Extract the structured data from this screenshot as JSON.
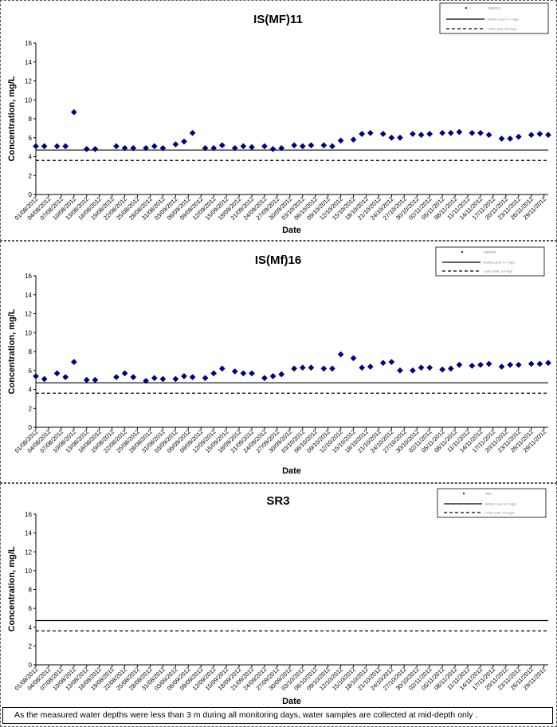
{
  "chart_data": [
    {
      "type": "scatter",
      "title": "IS(MF)11",
      "xlabel": "Date",
      "ylabel": "Concentration, mg/L",
      "ylim": [
        0,
        16
      ],
      "yticks": [
        0,
        2,
        4,
        6,
        8,
        10,
        12,
        14,
        16
      ],
      "legend": {
        "position": "top-right",
        "entries": [
          "IS(MF)11",
          "Action Level: 4.7 mg/L",
          "Limit Level: 3.6 mg/L"
        ]
      },
      "reference_lines": [
        {
          "name": "Action Level",
          "value": 4.7,
          "style": "solid"
        },
        {
          "name": "Limit Level",
          "value": 3.6,
          "style": "dashed"
        }
      ],
      "x_ticks": [
        "01/08/2012",
        "04/08/2012",
        "07/08/2012",
        "10/08/2012",
        "13/08/2012",
        "16/08/2012",
        "19/08/2012",
        "22/08/2012",
        "25/08/2012",
        "28/08/2012",
        "31/08/2012",
        "03/09/2012",
        "06/09/2012",
        "09/09/2012",
        "12/09/2012",
        "15/09/2012",
        "18/09/2012",
        "21/09/2012",
        "24/09/2012",
        "27/09/2012",
        "30/09/2012",
        "03/10/2012",
        "06/10/2012",
        "09/10/2012",
        "12/10/2012",
        "15/10/2012",
        "18/10/2012",
        "21/10/2012",
        "24/10/2012",
        "27/10/2012",
        "30/10/2012",
        "02/11/2012",
        "05/11/2012",
        "08/11/2012",
        "11/11/2012",
        "14/11/2012",
        "17/11/2012",
        "20/11/2012",
        "23/11/2012",
        "26/11/2012",
        "29/11/2012"
      ],
      "x_start": "01/08/2012",
      "x_end": "30/11/2012",
      "series": [
        {
          "name": "IS(MF)11",
          "color": "#00007F",
          "marker": "diamond",
          "x": [
            "01/08/2012",
            "03/08/2012",
            "06/08/2012",
            "08/08/2012",
            "10/08/2012",
            "13/08/2012",
            "15/08/2012",
            "20/08/2012",
            "22/08/2012",
            "24/08/2012",
            "27/08/2012",
            "29/08/2012",
            "31/08/2012",
            "03/09/2012",
            "05/09/2012",
            "07/09/2012",
            "10/09/2012",
            "12/09/2012",
            "14/09/2012",
            "17/09/2012",
            "19/09/2012",
            "21/09/2012",
            "24/09/2012",
            "26/09/2012",
            "28/09/2012",
            "01/10/2012",
            "03/10/2012",
            "05/10/2012",
            "08/10/2012",
            "10/10/2012",
            "12/10/2012",
            "15/10/2012",
            "17/10/2012",
            "19/10/2012",
            "22/10/2012",
            "24/10/2012",
            "26/10/2012",
            "29/10/2012",
            "31/10/2012",
            "02/11/2012",
            "05/11/2012",
            "07/11/2012",
            "09/11/2012",
            "12/11/2012",
            "14/11/2012",
            "16/11/2012",
            "19/11/2012",
            "21/11/2012",
            "23/11/2012",
            "26/11/2012",
            "28/11/2012",
            "30/11/2012"
          ],
          "y": [
            5.1,
            5.1,
            5.1,
            5.1,
            8.7,
            4.8,
            4.8,
            5.1,
            4.9,
            4.9,
            4.9,
            5.1,
            4.9,
            5.3,
            5.6,
            6.5,
            4.9,
            4.9,
            5.2,
            4.9,
            5.1,
            5.0,
            5.1,
            4.8,
            4.9,
            5.2,
            5.1,
            5.2,
            5.2,
            5.1,
            5.7,
            5.8,
            6.4,
            6.5,
            6.4,
            6.0,
            6.0,
            6.4,
            6.3,
            6.4,
            6.5,
            6.5,
            6.6,
            6.5,
            6.5,
            6.3,
            5.9,
            5.9,
            6.1,
            6.3,
            6.4,
            6.3
          ]
        }
      ]
    },
    {
      "type": "scatter",
      "title": "IS(Mf)16",
      "xlabel": "Date",
      "ylabel": "Concentration, mg/L",
      "ylim": [
        0,
        16
      ],
      "yticks": [
        0,
        2,
        4,
        6,
        8,
        10,
        12,
        14,
        16
      ],
      "legend": {
        "position": "top-right",
        "entries": [
          "IS(Mf)16",
          "Action Level: 4.7 mg/L",
          "Limit Level: 3.6 mg/L"
        ]
      },
      "reference_lines": [
        {
          "name": "Action Level",
          "value": 4.7,
          "style": "solid"
        },
        {
          "name": "Limit Level",
          "value": 3.6,
          "style": "dashed"
        }
      ],
      "x_ticks": [
        "01/08/2012",
        "04/08/2012",
        "07/08/2012",
        "10/08/2012",
        "13/08/2012",
        "16/08/2012",
        "19/08/2012",
        "22/08/2012",
        "25/08/2012",
        "28/08/2012",
        "31/08/2012",
        "03/09/2012",
        "06/09/2012",
        "09/09/2012",
        "12/09/2012",
        "15/09/2012",
        "18/09/2012",
        "21/09/2012",
        "24/09/2012",
        "27/09/2012",
        "30/09/2012",
        "03/10/2012",
        "06/10/2012",
        "09/10/2012",
        "12/10/2012",
        "15/10/2012",
        "18/10/2012",
        "21/10/2012",
        "24/10/2012",
        "27/10/2012",
        "30/10/2012",
        "02/11/2012",
        "05/11/2012",
        "08/11/2012",
        "11/11/2012",
        "14/11/2012",
        "17/11/2012",
        "20/11/2012",
        "23/11/2012",
        "26/11/2012",
        "29/11/2012"
      ],
      "x_start": "01/08/2012",
      "x_end": "30/11/2012",
      "series": [
        {
          "name": "IS(Mf)16",
          "color": "#00007F",
          "marker": "diamond",
          "x": [
            "01/08/2012",
            "03/08/2012",
            "06/08/2012",
            "08/08/2012",
            "10/08/2012",
            "13/08/2012",
            "15/08/2012",
            "20/08/2012",
            "22/08/2012",
            "24/08/2012",
            "27/08/2012",
            "29/08/2012",
            "31/08/2012",
            "03/09/2012",
            "05/09/2012",
            "07/09/2012",
            "10/09/2012",
            "12/09/2012",
            "14/09/2012",
            "17/09/2012",
            "19/09/2012",
            "21/09/2012",
            "24/09/2012",
            "26/09/2012",
            "28/09/2012",
            "01/10/2012",
            "03/10/2012",
            "05/10/2012",
            "08/10/2012",
            "10/10/2012",
            "12/10/2012",
            "15/10/2012",
            "17/10/2012",
            "19/10/2012",
            "22/10/2012",
            "24/10/2012",
            "26/10/2012",
            "29/10/2012",
            "31/10/2012",
            "02/11/2012",
            "05/11/2012",
            "07/11/2012",
            "09/11/2012",
            "12/11/2012",
            "14/11/2012",
            "16/11/2012",
            "19/11/2012",
            "21/11/2012",
            "23/11/2012",
            "26/11/2012",
            "28/11/2012",
            "30/11/2012"
          ],
          "y": [
            5.4,
            5.1,
            5.7,
            5.3,
            6.9,
            5.0,
            5.0,
            5.3,
            5.7,
            5.3,
            4.9,
            5.2,
            5.1,
            5.1,
            5.4,
            5.3,
            5.2,
            5.7,
            6.2,
            5.9,
            5.7,
            5.7,
            5.2,
            5.4,
            5.6,
            6.2,
            6.3,
            6.3,
            6.2,
            6.2,
            7.7,
            7.3,
            6.3,
            6.4,
            6.8,
            6.9,
            6.0,
            6.0,
            6.3,
            6.3,
            6.1,
            6.2,
            6.6,
            6.5,
            6.6,
            6.7,
            6.4,
            6.6,
            6.6,
            6.7,
            6.7,
            6.8
          ]
        }
      ]
    },
    {
      "type": "scatter",
      "title": "SR3",
      "xlabel": "Date",
      "ylabel": "Concentration, mg/L",
      "ylim": [
        0,
        16
      ],
      "yticks": [
        0,
        2,
        4,
        6,
        8,
        10,
        12,
        14,
        16
      ],
      "legend": {
        "position": "top-right",
        "entries": [
          "SR3",
          "Action Level: 4.7 mg/L",
          "Limit Level: 3.6 mg/L"
        ]
      },
      "reference_lines": [
        {
          "name": "Action Level",
          "value": 4.7,
          "style": "solid"
        },
        {
          "name": "Limit Level",
          "value": 3.6,
          "style": "dashed"
        }
      ],
      "x_ticks": [
        "01/08/2012",
        "04/08/2012",
        "07/08/2012",
        "10/08/2012",
        "13/08/2012",
        "16/08/2012",
        "19/08/2012",
        "22/08/2012",
        "25/08/2012",
        "28/08/2012",
        "31/08/2012",
        "03/09/2012",
        "06/09/2012",
        "09/09/2012",
        "12/09/2012",
        "15/09/2012",
        "18/09/2012",
        "21/09/2012",
        "24/09/2012",
        "27/09/2012",
        "30/09/2012",
        "03/10/2012",
        "06/10/2012",
        "09/10/2012",
        "12/10/2012",
        "15/10/2012",
        "18/10/2012",
        "21/10/2012",
        "24/10/2012",
        "27/10/2012",
        "30/10/2012",
        "02/11/2012",
        "05/11/2012",
        "08/11/2012",
        "11/11/2012",
        "14/11/2012",
        "17/11/2012",
        "20/11/2012",
        "23/11/2012",
        "26/11/2012",
        "29/11/2012"
      ],
      "x_start": "01/08/2012",
      "x_end": "30/11/2012",
      "series": [
        {
          "name": "SR3",
          "color": "#00007F",
          "marker": "diamond",
          "x": [],
          "y": []
        }
      ]
    }
  ],
  "footnote": "As the measured water depths were less than 3 m during all monitoring days, water samples are collected at mid-depth only ."
}
